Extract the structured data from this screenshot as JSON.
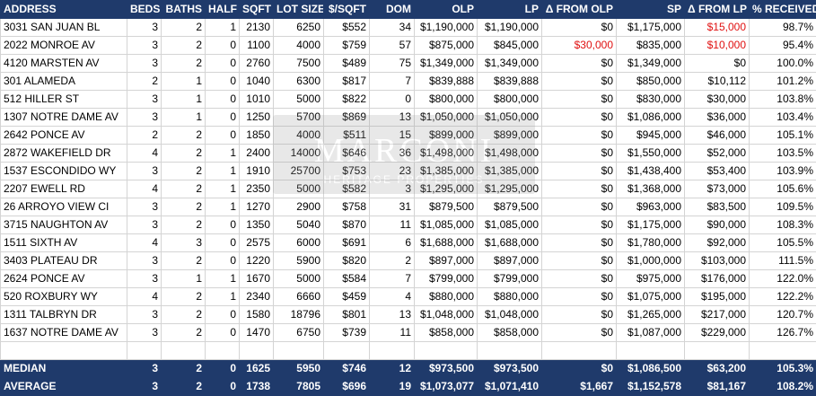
{
  "columns": [
    "ADDRESS",
    "BEDS",
    "BATHS",
    "HALF",
    "SQFT",
    "LOT SIZE",
    "$/SQFT",
    "DOM",
    "OLP",
    "LP",
    "Δ FROM OLP",
    "SP",
    "Δ FROM LP",
    "% RECEIVED"
  ],
  "rows": [
    [
      "3031 SAN JUAN BL",
      "3",
      "2",
      "1",
      "2130",
      "6250",
      "$552",
      "34",
      "$1,190,000",
      "$1,190,000",
      "$0",
      "$1,175,000",
      "$15,000",
      "98.7%"
    ],
    [
      "2022 MONROE AV",
      "3",
      "2",
      "0",
      "1100",
      "4000",
      "$759",
      "57",
      "$875,000",
      "$845,000",
      "$30,000",
      "$835,000",
      "$10,000",
      "95.4%"
    ],
    [
      "4120 MARSTEN AV",
      "3",
      "2",
      "0",
      "2760",
      "7500",
      "$489",
      "75",
      "$1,349,000",
      "$1,349,000",
      "$0",
      "$1,349,000",
      "$0",
      "100.0%"
    ],
    [
      "301 ALAMEDA",
      "2",
      "1",
      "0",
      "1040",
      "6300",
      "$817",
      "7",
      "$839,888",
      "$839,888",
      "$0",
      "$850,000",
      "$10,112",
      "101.2%"
    ],
    [
      "512 HILLER ST",
      "3",
      "1",
      "0",
      "1010",
      "5000",
      "$822",
      "0",
      "$800,000",
      "$800,000",
      "$0",
      "$830,000",
      "$30,000",
      "103.8%"
    ],
    [
      "1307 NOTRE DAME AV",
      "3",
      "1",
      "0",
      "1250",
      "5700",
      "$869",
      "13",
      "$1,050,000",
      "$1,050,000",
      "$0",
      "$1,086,000",
      "$36,000",
      "103.4%"
    ],
    [
      "2642 PONCE AV",
      "2",
      "2",
      "0",
      "1850",
      "4000",
      "$511",
      "15",
      "$899,000",
      "$899,000",
      "$0",
      "$945,000",
      "$46,000",
      "105.1%"
    ],
    [
      "2872 WAKEFIELD DR",
      "4",
      "2",
      "1",
      "2400",
      "14000",
      "$646",
      "36",
      "$1,498,000",
      "$1,498,000",
      "$0",
      "$1,550,000",
      "$52,000",
      "103.5%"
    ],
    [
      "1537 ESCONDIDO WY",
      "3",
      "2",
      "1",
      "1910",
      "25700",
      "$753",
      "23",
      "$1,385,000",
      "$1,385,000",
      "$0",
      "$1,438,400",
      "$53,400",
      "103.9%"
    ],
    [
      "2207 EWELL RD",
      "4",
      "2",
      "1",
      "2350",
      "5000",
      "$582",
      "3",
      "$1,295,000",
      "$1,295,000",
      "$0",
      "$1,368,000",
      "$73,000",
      "105.6%"
    ],
    [
      "26 ARROYO VIEW CI",
      "3",
      "2",
      "1",
      "1270",
      "2900",
      "$758",
      "31",
      "$879,500",
      "$879,500",
      "$0",
      "$963,000",
      "$83,500",
      "109.5%"
    ],
    [
      "3715 NAUGHTON AV",
      "3",
      "2",
      "0",
      "1350",
      "5040",
      "$870",
      "11",
      "$1,085,000",
      "$1,085,000",
      "$0",
      "$1,175,000",
      "$90,000",
      "108.3%"
    ],
    [
      "1511 SIXTH AV",
      "4",
      "3",
      "0",
      "2575",
      "6000",
      "$691",
      "6",
      "$1,688,000",
      "$1,688,000",
      "$0",
      "$1,780,000",
      "$92,000",
      "105.5%"
    ],
    [
      "3403 PLATEAU DR",
      "3",
      "2",
      "0",
      "1220",
      "5900",
      "$820",
      "2",
      "$897,000",
      "$897,000",
      "$0",
      "$1,000,000",
      "$103,000",
      "111.5%"
    ],
    [
      "2624 PONCE AV",
      "3",
      "1",
      "1",
      "1670",
      "5000",
      "$584",
      "7",
      "$799,000",
      "$799,000",
      "$0",
      "$975,000",
      "$176,000",
      "122.0%"
    ],
    [
      "520 ROXBURY WY",
      "4",
      "2",
      "1",
      "2340",
      "6660",
      "$459",
      "4",
      "$880,000",
      "$880,000",
      "$0",
      "$1,075,000",
      "$195,000",
      "122.2%"
    ],
    [
      "1311 TALBRYN DR",
      "3",
      "2",
      "0",
      "1580",
      "18796",
      "$801",
      "13",
      "$1,048,000",
      "$1,048,000",
      "$0",
      "$1,265,000",
      "$217,000",
      "120.7%"
    ],
    [
      "1637 NOTRE DAME AV",
      "3",
      "2",
      "0",
      "1470",
      "6750",
      "$739",
      "11",
      "$858,000",
      "$858,000",
      "$0",
      "$1,087,000",
      "$229,000",
      "126.7%"
    ]
  ],
  "red_cells": [
    [
      0,
      12
    ],
    [
      1,
      10
    ],
    [
      1,
      12
    ]
  ],
  "summary": [
    [
      "MEDIAN",
      "3",
      "2",
      "0",
      "1625",
      "5950",
      "$746",
      "12",
      "$973,500",
      "$973,500",
      "$0",
      "$1,086,500",
      "$63,200",
      "105.3%"
    ],
    [
      "AVERAGE",
      "3",
      "2",
      "0",
      "1738",
      "7805",
      "$696",
      "19",
      "$1,073,077",
      "$1,071,410",
      "$1,667",
      "$1,152,578",
      "$81,167",
      "108.2%"
    ]
  ],
  "summary_red_cells": [
    [
      1,
      10
    ]
  ],
  "watermark": {
    "text": "MARCONI",
    "subtext": "HERITAGE PROPERTIES"
  },
  "colors": {
    "header_bg": "#1f3a6b",
    "header_text": "#ffffff",
    "negative": "#e01010",
    "gridline": "#d4d4d4"
  }
}
